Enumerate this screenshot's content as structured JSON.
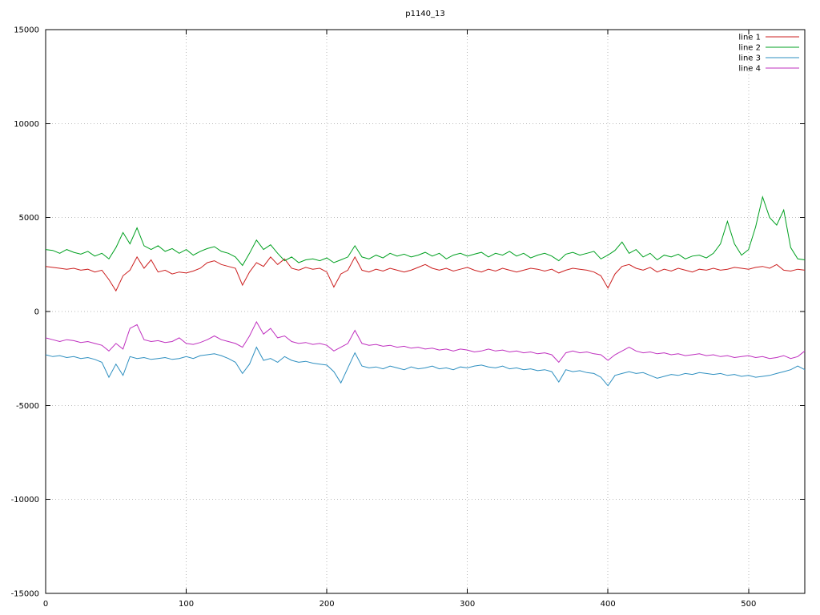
{
  "chart_data": {
    "type": "line",
    "title": "p1140_13",
    "xlabel": "",
    "ylabel": "",
    "xlim": [
      0,
      540
    ],
    "ylim": [
      -15000,
      15000
    ],
    "x_ticks": [
      0,
      100,
      200,
      300,
      400,
      500
    ],
    "y_ticks": [
      -15000,
      -10000,
      -5000,
      0,
      5000,
      10000,
      15000
    ],
    "grid": "dotted",
    "legend_position": "top-right",
    "background": "#ffffff",
    "x_step": 5,
    "series": [
      {
        "name": "line 1",
        "color": "#cc2020",
        "values": [
          2400,
          2350,
          2300,
          2250,
          2300,
          2200,
          2250,
          2100,
          2200,
          1700,
          1100,
          1900,
          2200,
          2900,
          2300,
          2750,
          2100,
          2200,
          2000,
          2100,
          2050,
          2150,
          2300,
          2600,
          2700,
          2500,
          2400,
          2300,
          1400,
          2100,
          2600,
          2400,
          2900,
          2500,
          2800,
          2300,
          2200,
          2350,
          2250,
          2300,
          2100,
          1300,
          2000,
          2200,
          2900,
          2200,
          2100,
          2250,
          2150,
          2300,
          2200,
          2100,
          2200,
          2350,
          2500,
          2300,
          2200,
          2300,
          2150,
          2250,
          2350,
          2200,
          2100,
          2250,
          2150,
          2300,
          2200,
          2100,
          2200,
          2300,
          2250,
          2150,
          2250,
          2050,
          2200,
          2300,
          2250,
          2200,
          2100,
          1900,
          1250,
          2000,
          2400,
          2500,
          2300,
          2200,
          2350,
          2100,
          2250,
          2150,
          2300,
          2200,
          2100,
          2250,
          2200,
          2300,
          2200,
          2250,
          2350,
          2300,
          2250,
          2350,
          2400,
          2300,
          2500,
          2200,
          2150,
          2250,
          2200
        ]
      },
      {
        "name": "line 2",
        "color": "#00a020",
        "values": [
          3300,
          3250,
          3100,
          3300,
          3150,
          3050,
          3200,
          2950,
          3100,
          2800,
          3400,
          4200,
          3600,
          4450,
          3500,
          3300,
          3500,
          3200,
          3350,
          3100,
          3300,
          3000,
          3200,
          3350,
          3450,
          3200,
          3100,
          2900,
          2450,
          3100,
          3800,
          3300,
          3550,
          3100,
          2700,
          2900,
          2600,
          2750,
          2800,
          2700,
          2850,
          2600,
          2750,
          2900,
          3500,
          2900,
          2800,
          3000,
          2850,
          3100,
          2950,
          3050,
          2900,
          3000,
          3150,
          2950,
          3100,
          2800,
          3000,
          3100,
          2950,
          3050,
          3150,
          2900,
          3100,
          3000,
          3200,
          2950,
          3100,
          2850,
          3000,
          3100,
          2950,
          2700,
          3050,
          3150,
          3000,
          3100,
          3200,
          2800,
          3000,
          3250,
          3700,
          3100,
          3300,
          2900,
          3100,
          2750,
          3000,
          2900,
          3050,
          2800,
          2950,
          3000,
          2850,
          3100,
          3600,
          4800,
          3600,
          3000,
          3300,
          4500,
          6100,
          5000,
          4600,
          5400,
          3400,
          2800,
          2750
        ]
      },
      {
        "name": "line 3",
        "color": "#2e8fc0",
        "values": [
          -2300,
          -2400,
          -2350,
          -2450,
          -2400,
          -2500,
          -2450,
          -2550,
          -2700,
          -3500,
          -2800,
          -3400,
          -2400,
          -2500,
          -2450,
          -2550,
          -2500,
          -2450,
          -2550,
          -2500,
          -2400,
          -2500,
          -2350,
          -2300,
          -2250,
          -2350,
          -2500,
          -2700,
          -3300,
          -2800,
          -1900,
          -2600,
          -2500,
          -2700,
          -2400,
          -2600,
          -2700,
          -2650,
          -2750,
          -2800,
          -2850,
          -3200,
          -3800,
          -3000,
          -2200,
          -2900,
          -3000,
          -2950,
          -3050,
          -2900,
          -3000,
          -3100,
          -2950,
          -3050,
          -3000,
          -2900,
          -3050,
          -3000,
          -3100,
          -2950,
          -3000,
          -2900,
          -2850,
          -2950,
          -3000,
          -2900,
          -3050,
          -3000,
          -3100,
          -3050,
          -3150,
          -3100,
          -3200,
          -3750,
          -3100,
          -3200,
          -3150,
          -3250,
          -3300,
          -3500,
          -3950,
          -3400,
          -3300,
          -3200,
          -3300,
          -3250,
          -3400,
          -3550,
          -3450,
          -3350,
          -3400,
          -3300,
          -3350,
          -3250,
          -3300,
          -3350,
          -3300,
          -3400,
          -3350,
          -3450,
          -3400,
          -3500,
          -3450,
          -3400,
          -3300,
          -3200,
          -3100,
          -2900,
          -3100
        ]
      },
      {
        "name": "line 4",
        "color": "#bf30bf",
        "values": [
          -1400,
          -1500,
          -1600,
          -1500,
          -1550,
          -1650,
          -1600,
          -1700,
          -1800,
          -2100,
          -1700,
          -2000,
          -900,
          -700,
          -1500,
          -1600,
          -1550,
          -1650,
          -1600,
          -1400,
          -1700,
          -1750,
          -1650,
          -1500,
          -1300,
          -1500,
          -1600,
          -1700,
          -1900,
          -1300,
          -550,
          -1200,
          -900,
          -1400,
          -1300,
          -1600,
          -1700,
          -1650,
          -1750,
          -1700,
          -1800,
          -2100,
          -1900,
          -1700,
          -1000,
          -1700,
          -1800,
          -1750,
          -1850,
          -1800,
          -1900,
          -1850,
          -1950,
          -1900,
          -2000,
          -1950,
          -2050,
          -2000,
          -2100,
          -2000,
          -2050,
          -2150,
          -2100,
          -2000,
          -2100,
          -2050,
          -2150,
          -2100,
          -2200,
          -2150,
          -2250,
          -2200,
          -2300,
          -2700,
          -2200,
          -2100,
          -2200,
          -2150,
          -2250,
          -2300,
          -2600,
          -2300,
          -2100,
          -1900,
          -2100,
          -2200,
          -2150,
          -2250,
          -2200,
          -2300,
          -2250,
          -2350,
          -2300,
          -2250,
          -2350,
          -2300,
          -2400,
          -2350,
          -2450,
          -2400,
          -2350,
          -2450,
          -2400,
          -2500,
          -2450,
          -2350,
          -2500,
          -2400,
          -2100
        ]
      }
    ]
  }
}
